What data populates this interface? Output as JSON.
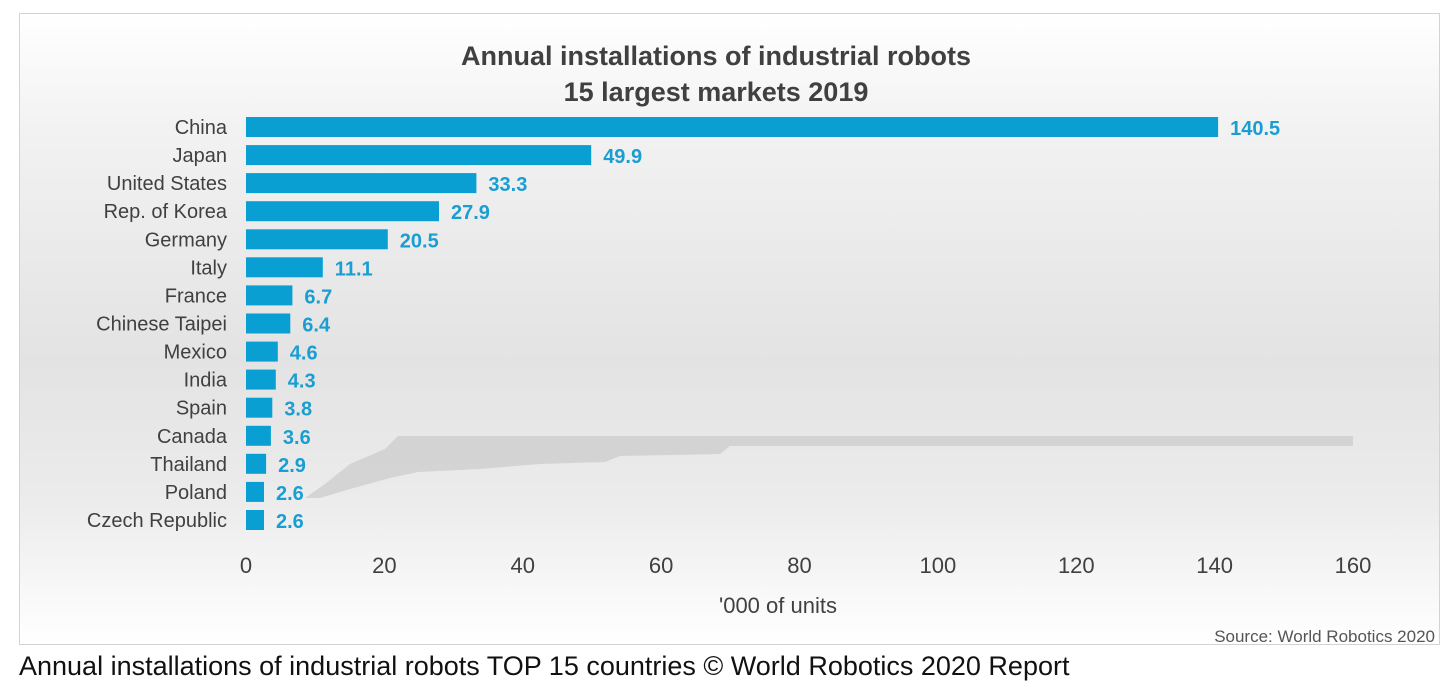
{
  "chart_data": {
    "type": "bar",
    "orientation": "horizontal",
    "title": [
      "Annual installations of industrial robots",
      "15 largest markets 2019"
    ],
    "categories": [
      "China",
      "Japan",
      "United States",
      "Rep. of Korea",
      "Germany",
      "Italy",
      "France",
      "Chinese Taipei",
      "Mexico",
      "India",
      "Spain",
      "Canada",
      "Thailand",
      "Poland",
      "Czech Republic"
    ],
    "values": [
      140.5,
      49.9,
      33.3,
      27.9,
      20.5,
      11.1,
      6.7,
      6.4,
      4.6,
      4.3,
      3.8,
      3.6,
      2.9,
      2.6,
      2.6
    ],
    "value_labels": [
      "140.5",
      "49.9",
      "33.3",
      "27.9",
      "20.5",
      "11.1",
      "6.7",
      "6.4",
      "4.6",
      "4.3",
      "3.8",
      "3.6",
      "2.9",
      "2.6",
      "2.6"
    ],
    "xlim": [
      0,
      160
    ],
    "xticks": [
      0,
      20,
      40,
      60,
      80,
      100,
      120,
      140,
      160
    ],
    "xlabel": "'000 of units",
    "ylabel": "",
    "grid": false,
    "legend": "none",
    "bar_color": "#0a9fd3",
    "label_color": "#1a9ed2",
    "source": "Source: World Robotics 2020"
  },
  "caption": "Annual installations of industrial robots TOP 15 countries © World Robotics 2020 Report"
}
